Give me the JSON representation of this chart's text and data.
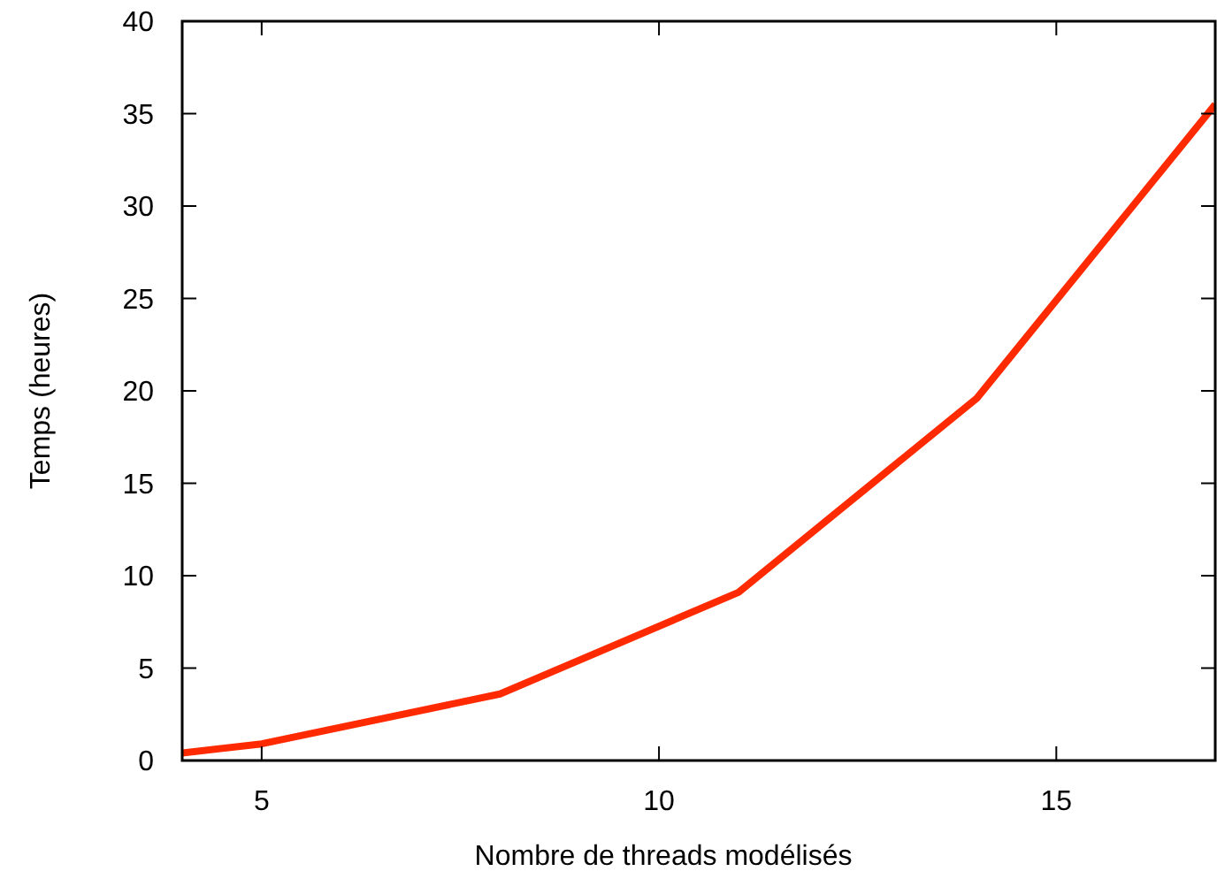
{
  "chart_data": {
    "type": "line",
    "xlabel": "Nombre de threads modélisés",
    "ylabel": "Temps (heures)",
    "xlim": [
      4,
      17
    ],
    "xticks": [
      5,
      10,
      15
    ],
    "ylim": [
      0,
      40
    ],
    "yticks": [
      0,
      5,
      10,
      15,
      20,
      25,
      30,
      35,
      40
    ],
    "x": [
      4,
      5,
      8,
      11,
      14,
      17
    ],
    "series": [
      {
        "color": "#ff2a00",
        "values": [
          0.4,
          0.9,
          3.6,
          9.1,
          19.6,
          35.5
        ]
      }
    ],
    "grid": false,
    "line_style": "solid",
    "marker": "none"
  }
}
